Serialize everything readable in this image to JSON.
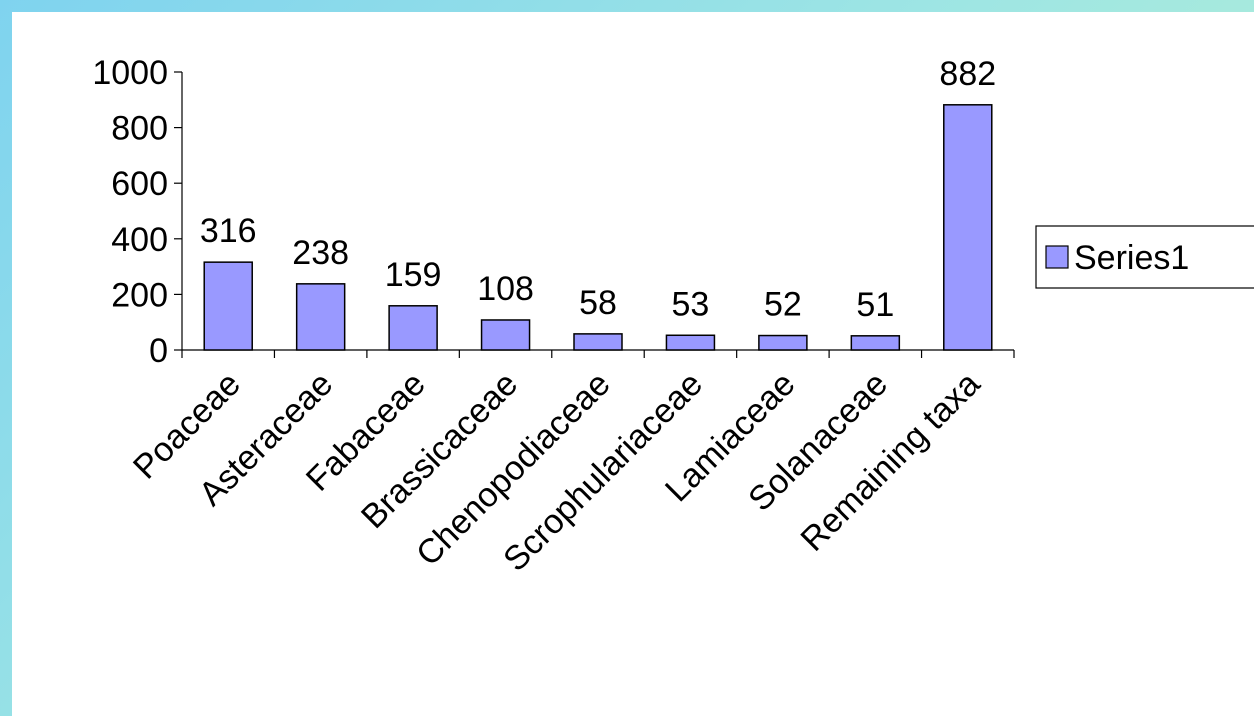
{
  "chart_data": {
    "type": "bar",
    "categories": [
      "Poaceae",
      "Asteraceae",
      "Fabaceae",
      "Brassicaceae",
      "Chenopodiaceae",
      "Scrophulariaceae",
      "Lamiaceae",
      "Solanaceae",
      "Remaining taxa"
    ],
    "series": [
      {
        "name": "Series1",
        "values": [
          316,
          238,
          159,
          108,
          58,
          53,
          52,
          51,
          882
        ]
      }
    ],
    "data_labels": [
      "316",
      "238",
      "159",
      "108",
      "58",
      "53",
      "52",
      "51",
      "882"
    ],
    "yticks": [
      "0",
      "200",
      "400",
      "600",
      "800",
      "1000"
    ],
    "ylim": [
      0,
      1000
    ],
    "title": "",
    "xlabel": "",
    "ylabel": "",
    "grid": false,
    "legend_position": "right",
    "colors": {
      "bar_fill": "#9999ff",
      "bar_stroke": "#000000",
      "frame_gradient": [
        "#7fd3ef",
        "#b9f2cf"
      ]
    }
  }
}
